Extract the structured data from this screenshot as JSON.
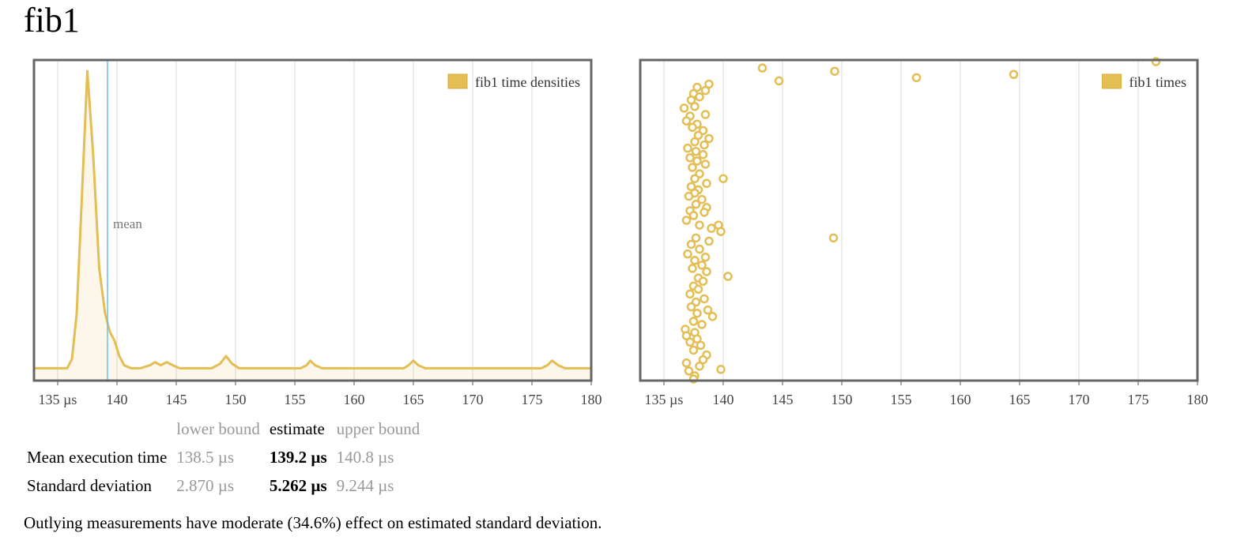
{
  "title": "fib1",
  "colors": {
    "series": "#e3be54",
    "mean_line": "#6cc0e8",
    "grid": "#d8d8d8",
    "frame": "#666666"
  },
  "chart_data": [
    {
      "type": "area",
      "legend": "fib1 time densities",
      "legend_position": "top-right",
      "xlim": [
        133,
        180
      ],
      "x_ticks": [
        135,
        140,
        145,
        150,
        155,
        160,
        165,
        170,
        175,
        180
      ],
      "x_tick_labels": [
        "135 µs",
        "140",
        "145",
        "150",
        "155",
        "160",
        "165",
        "170",
        "175",
        "180"
      ],
      "grid": true,
      "mean_label": "mean",
      "mean_value": 139.2,
      "density": [
        [
          133.0,
          0.02
        ],
        [
          135.8,
          0.02
        ],
        [
          136.2,
          0.05
        ],
        [
          136.6,
          0.2
        ],
        [
          137.0,
          0.55
        ],
        [
          137.5,
          1.0
        ],
        [
          138.0,
          0.72
        ],
        [
          138.5,
          0.35
        ],
        [
          139.0,
          0.2
        ],
        [
          139.4,
          0.14
        ],
        [
          139.8,
          0.11
        ],
        [
          140.2,
          0.06
        ],
        [
          140.6,
          0.03
        ],
        [
          141.2,
          0.02
        ],
        [
          142.0,
          0.02
        ],
        [
          142.8,
          0.03
        ],
        [
          143.2,
          0.04
        ],
        [
          143.7,
          0.03
        ],
        [
          144.2,
          0.04
        ],
        [
          144.7,
          0.03
        ],
        [
          145.3,
          0.02
        ],
        [
          148.0,
          0.02
        ],
        [
          148.7,
          0.035
        ],
        [
          149.2,
          0.06
        ],
        [
          149.7,
          0.035
        ],
        [
          150.3,
          0.02
        ],
        [
          155.5,
          0.02
        ],
        [
          156.0,
          0.03
        ],
        [
          156.3,
          0.045
        ],
        [
          156.7,
          0.03
        ],
        [
          157.3,
          0.02
        ],
        [
          164.2,
          0.02
        ],
        [
          164.6,
          0.03
        ],
        [
          165.0,
          0.045
        ],
        [
          165.4,
          0.03
        ],
        [
          166.0,
          0.02
        ],
        [
          175.8,
          0.02
        ],
        [
          176.3,
          0.03
        ],
        [
          176.7,
          0.045
        ],
        [
          177.2,
          0.03
        ],
        [
          177.8,
          0.02
        ],
        [
          180.0,
          0.02
        ]
      ]
    },
    {
      "type": "scatter",
      "legend": "fib1 times",
      "legend_position": "top-right",
      "xlim": [
        133,
        180
      ],
      "x_ticks": [
        135,
        140,
        145,
        150,
        155,
        160,
        165,
        170,
        175,
        180
      ],
      "x_tick_labels": [
        "135 µs",
        "140",
        "145",
        "150",
        "155",
        "160",
        "165",
        "170",
        "175",
        "180"
      ],
      "grid": true,
      "ylim": [
        0,
        100
      ],
      "points": [
        [
          143.3,
          97.5
        ],
        [
          144.7,
          93.5
        ],
        [
          149.4,
          96.5
        ],
        [
          156.3,
          94.5
        ],
        [
          164.5,
          95.5
        ],
        [
          176.5,
          99.5
        ],
        [
          149.3,
          44.5
        ],
        [
          140.0,
          63.0
        ],
        [
          140.4,
          32.5
        ],
        [
          139.8,
          3.5
        ],
        [
          137.8,
          91.5
        ],
        [
          138.8,
          92.5
        ],
        [
          137.5,
          89.5
        ],
        [
          138.5,
          90.5
        ],
        [
          137.3,
          87.5
        ],
        [
          138.0,
          88.5
        ],
        [
          136.7,
          85.0
        ],
        [
          137.6,
          85.5
        ],
        [
          138.5,
          83.0
        ],
        [
          137.2,
          82.5
        ],
        [
          136.9,
          81.0
        ],
        [
          137.8,
          80.0
        ],
        [
          137.4,
          79.0
        ],
        [
          138.3,
          78.0
        ],
        [
          137.9,
          76.5
        ],
        [
          138.8,
          75.5
        ],
        [
          137.6,
          74.5
        ],
        [
          138.4,
          73.5
        ],
        [
          137.0,
          72.5
        ],
        [
          137.7,
          71.5
        ],
        [
          138.3,
          70.5
        ],
        [
          137.2,
          69.5
        ],
        [
          137.8,
          68.5
        ],
        [
          138.5,
          67.5
        ],
        [
          137.4,
          66.5
        ],
        [
          138.0,
          64.5
        ],
        [
          137.6,
          63.0
        ],
        [
          138.6,
          61.5
        ],
        [
          137.3,
          60.5
        ],
        [
          137.9,
          59.5
        ],
        [
          137.6,
          58.5
        ],
        [
          137.1,
          57.5
        ],
        [
          138.2,
          56.5
        ],
        [
          137.7,
          55.0
        ],
        [
          138.6,
          54.0
        ],
        [
          137.2,
          53.0
        ],
        [
          138.4,
          52.5
        ],
        [
          137.5,
          51.5
        ],
        [
          136.9,
          50.0
        ],
        [
          138.0,
          48.5
        ],
        [
          139.0,
          47.5
        ],
        [
          139.6,
          48.5
        ],
        [
          139.8,
          46.5
        ],
        [
          137.7,
          44.5
        ],
        [
          138.8,
          43.5
        ],
        [
          137.3,
          42.5
        ],
        [
          138.0,
          41.0
        ],
        [
          137.0,
          39.5
        ],
        [
          138.5,
          38.5
        ],
        [
          137.6,
          37.5
        ],
        [
          138.2,
          36.0
        ],
        [
          137.4,
          35.0
        ],
        [
          138.6,
          34.0
        ],
        [
          137.9,
          32.0
        ],
        [
          138.3,
          31.0
        ],
        [
          137.5,
          29.5
        ],
        [
          137.9,
          28.5
        ],
        [
          137.2,
          27.0
        ],
        [
          138.4,
          25.5
        ],
        [
          137.7,
          24.5
        ],
        [
          137.3,
          23.0
        ],
        [
          138.7,
          22.0
        ],
        [
          137.8,
          21.0
        ],
        [
          139.1,
          20.0
        ],
        [
          137.5,
          18.5
        ],
        [
          138.2,
          17.5
        ],
        [
          136.8,
          16.0
        ],
        [
          137.6,
          15.0
        ],
        [
          136.9,
          14.0
        ],
        [
          137.8,
          13.0
        ],
        [
          137.2,
          12.0
        ],
        [
          138.1,
          11.0
        ],
        [
          137.5,
          9.5
        ],
        [
          138.6,
          8.0
        ],
        [
          138.3,
          6.5
        ],
        [
          136.9,
          5.5
        ],
        [
          138.0,
          4.5
        ],
        [
          137.1,
          3.0
        ],
        [
          137.6,
          1.5
        ],
        [
          137.5,
          0.5
        ]
      ]
    }
  ],
  "stats": {
    "headers": {
      "lower": "lower bound",
      "estimate": "estimate",
      "upper": "upper bound"
    },
    "rows": [
      {
        "label": "Mean execution time",
        "lower": "138.5 µs",
        "estimate": "139.2 µs",
        "upper": "140.8 µs"
      },
      {
        "label": "Standard deviation",
        "lower": "2.870 µs",
        "estimate": "5.262 µs",
        "upper": "9.244 µs"
      }
    ]
  },
  "outlier_note": "Outlying measurements have moderate (34.6%) effect on estimated standard deviation."
}
